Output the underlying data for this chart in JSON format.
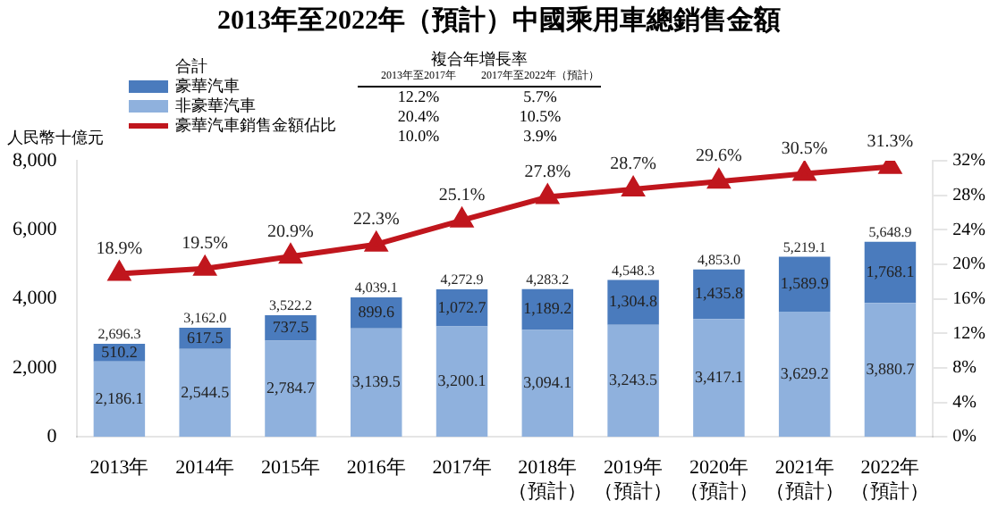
{
  "chart_data": {
    "type": "bar",
    "title": "2013年至2022年（預計）中國乘用車總銷售金額",
    "ylabel": "人民幣十億元",
    "stacked": true,
    "legend": "top left",
    "grid": false,
    "categories": [
      "2013年",
      "2014年",
      "2015年",
      "2016年",
      "2017年",
      "2018年（預計）",
      "2019年（預計）",
      "2020年（預計）",
      "2021年（預計）",
      "2022年（預計）"
    ],
    "series": [
      {
        "name": "非豪華汽車",
        "color": "#8fb1dd",
        "values": [
          2186.1,
          2544.5,
          2784.7,
          3139.5,
          3200.1,
          3094.1,
          3243.5,
          3417.1,
          3629.2,
          3880.7
        ],
        "value_labels": [
          "2,186.1",
          "2,544.5",
          "2,784.7",
          "3,139.5",
          "3,200.1",
          "3,094.1",
          "3,243.5",
          "3,417.1",
          "3,629.2",
          "3,880.7"
        ]
      },
      {
        "name": "豪華汽車",
        "color": "#4a7bbd",
        "values": [
          510.2,
          617.5,
          737.5,
          899.6,
          1072.7,
          1189.2,
          1304.8,
          1435.8,
          1589.9,
          1768.1
        ],
        "value_labels": [
          "510.2",
          "617.5",
          "737.5",
          "899.6",
          "1,072.7",
          "1,189.2",
          "1,304.8",
          "1,435.8",
          "1,589.9",
          "1,768.1"
        ]
      },
      {
        "name": "豪華汽車銷售金額佔比",
        "type": "line",
        "axis": "y2",
        "color": "#c0161d",
        "marker": "triangle",
        "line_style": "solid",
        "values": [
          18.9,
          19.5,
          20.9,
          22.3,
          25.1,
          27.8,
          28.7,
          29.6,
          30.5,
          31.3
        ],
        "value_labels": [
          "18.9%",
          "19.5%",
          "20.9%",
          "22.3%",
          "25.1%",
          "27.8%",
          "28.7%",
          "29.6%",
          "30.5%",
          "31.3%"
        ]
      }
    ],
    "totals": [
      "2,696.3",
      "3,162.0",
      "3,522.2",
      "4,039.1",
      "4,272.9",
      "4,283.2",
      "4,548.3",
      "4,853.0",
      "5,219.1",
      "5,648.9"
    ],
    "ylim": [
      0,
      8000
    ],
    "yticks": [
      0,
      {
        "value": 2000,
        "label": "2,000"
      },
      {
        "value": 4000,
        "label": "4,000"
      },
      {
        "value": 6000,
        "label": "6,000"
      },
      {
        "value": 8000,
        "label": "8,000"
      }
    ],
    "y2lim": [
      0,
      32
    ],
    "y2ticks": [
      {
        "value": 0,
        "label": "0%"
      },
      {
        "value": 4,
        "label": "4%"
      },
      {
        "value": 8,
        "label": "8%"
      },
      {
        "value": 12,
        "label": "12%"
      },
      {
        "value": 16,
        "label": "16%"
      },
      {
        "value": 20,
        "label": "20%"
      },
      {
        "value": 24,
        "label": "24%"
      },
      {
        "value": 28,
        "label": "28%"
      },
      {
        "value": 32,
        "label": "32%"
      }
    ],
    "annotations": [
      "合計",
      "複合年增長率",
      "2013年至2017年",
      "2017年至2022年（預計）",
      "12.2%",
      "5.7%",
      "20.4%",
      "10.5%",
      "10.0%",
      "3.9%"
    ]
  }
}
